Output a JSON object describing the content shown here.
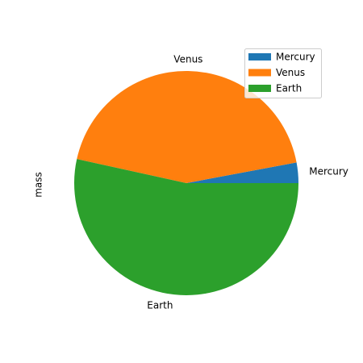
{
  "chart_data": {
    "type": "pie",
    "ylabel": "mass",
    "slices": [
      {
        "label": "Mercury",
        "value": 0.33,
        "color": "#1f77b4"
      },
      {
        "label": "Venus",
        "value": 4.87,
        "color": "#ff7f0e"
      },
      {
        "label": "Earth",
        "value": 5.97,
        "color": "#2ca02c"
      }
    ],
    "start_angle": 0,
    "direction": "counterclockwise",
    "legend": {
      "placement": "upper-right",
      "entries": [
        "Mercury",
        "Venus",
        "Earth"
      ]
    }
  }
}
